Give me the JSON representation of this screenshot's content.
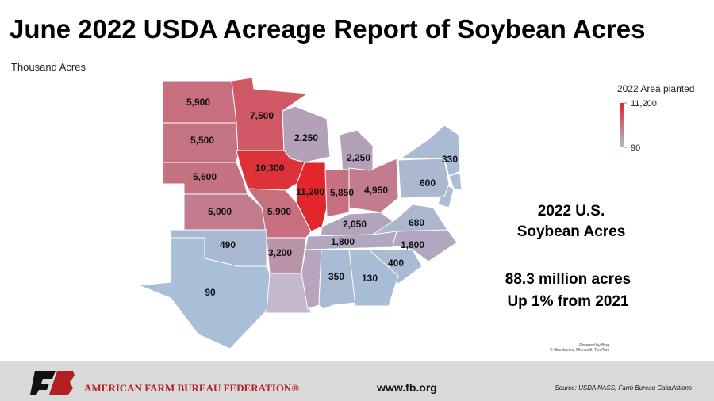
{
  "chart_data": {
    "type": "choropleth",
    "title": "June 2022 USDA Acreage Report of Soybean Acres",
    "subtitle": "Thousand Acres",
    "legend_title": "2022 Area planted",
    "colorbar": {
      "lim": [
        90,
        11200
      ],
      "ticks": [
        {
          "value": 11200,
          "label": "11,200"
        },
        90
      ],
      "colors": [
        "#a8bfd8",
        "#e3262c"
      ]
    },
    "values": [
      5900,
      7500,
      5500,
      2250,
      2250,
      330,
      10300,
      5600,
      11200,
      5850,
      4950,
      600,
      5000,
      5900,
      2050,
      680,
      490,
      3200,
      1800,
      1800,
      400,
      350,
      130,
      90
    ],
    "value_labels": [
      "5,900",
      "7,500",
      "5,500",
      "2,250",
      "2,250",
      "330",
      "10,300",
      "5,600",
      "11,200",
      "5,850",
      "4,950",
      "600",
      "5,000",
      "5,900",
      "2,050",
      "680",
      "490",
      "3,200",
      "1,800",
      "1,800",
      "400",
      "350",
      "130",
      "90"
    ],
    "headline": "2022 U.S. Soybean Acres",
    "total": "88.3 million acres",
    "change": "Up 1% from 2021",
    "map_credit": "Powered by Bing",
    "map_copyright": "© GeoNames, Microsoft, TomTom"
  },
  "footer": {
    "organization": "AMERICAN FARM BUREAU FEDERATION®",
    "url": "www.fb.org",
    "source": "Source: USDA NASS, Farm Bureau Calculations"
  }
}
